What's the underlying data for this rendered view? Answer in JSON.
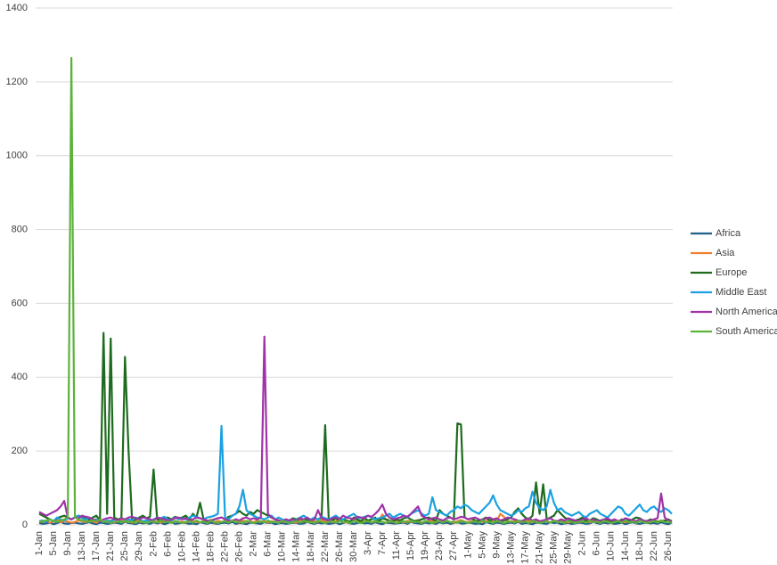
{
  "chart_data": {
    "type": "line",
    "categories": [
      "1-Jan",
      null,
      null,
      null,
      "5-Jan",
      null,
      null,
      null,
      "9-Jan",
      null,
      null,
      null,
      "13-Jan",
      null,
      null,
      null,
      "17-Jan",
      null,
      null,
      null,
      "21-Jan",
      null,
      null,
      null,
      "25-Jan",
      null,
      null,
      null,
      "29-Jan",
      null,
      null,
      null,
      "2-Feb",
      null,
      null,
      null,
      "6-Feb",
      null,
      null,
      null,
      "10-Feb",
      null,
      null,
      null,
      "14-Feb",
      null,
      null,
      null,
      "18-Feb",
      null,
      null,
      null,
      "22-Feb",
      null,
      null,
      null,
      "26-Feb",
      null,
      null,
      null,
      "2-Mar",
      null,
      null,
      null,
      "6-Mar",
      null,
      null,
      null,
      "10-Mar",
      null,
      null,
      null,
      "14-Mar",
      null,
      null,
      null,
      "18-Mar",
      null,
      null,
      null,
      "22-Mar",
      null,
      null,
      null,
      "26-Mar",
      null,
      null,
      null,
      "30-Mar",
      null,
      null,
      null,
      "3-Apr",
      null,
      null,
      null,
      "7-Apr",
      null,
      null,
      null,
      "11-Apr",
      null,
      null,
      null,
      "15-Apr",
      null,
      null,
      null,
      "19-Apr",
      null,
      null,
      null,
      "23-Apr",
      null,
      null,
      null,
      "27-Apr",
      null,
      null,
      null,
      "1-May",
      null,
      null,
      null,
      "5-May",
      null,
      null,
      null,
      "9-May",
      null,
      null,
      null,
      "13-May",
      null,
      null,
      null,
      "17-May",
      null,
      null,
      null,
      "21-May",
      null,
      null,
      null,
      "25-May",
      null,
      null,
      null,
      "29-May",
      null,
      null,
      null,
      "2-Jun",
      null,
      null,
      null,
      "6-Jun",
      null,
      null,
      null,
      "10-Jun",
      null,
      null,
      null,
      "14-Jun",
      null,
      null,
      null,
      "18-Jun",
      null,
      null,
      null,
      "22-Jun",
      null,
      null,
      null,
      "26-Jun",
      null
    ],
    "series": [
      {
        "name": "Africa",
        "color": "#1f5f8b",
        "values": [
          5,
          3,
          4,
          6,
          2,
          5,
          8,
          4,
          3,
          5,
          6,
          4,
          3,
          5,
          7,
          4,
          2,
          6,
          5,
          3,
          4,
          6,
          5,
          3,
          8,
          5,
          4,
          2,
          6,
          4,
          5,
          3,
          7,
          4,
          6,
          2,
          5,
          8,
          3,
          4,
          6,
          5,
          3,
          4,
          2,
          7,
          5,
          3,
          6,
          4,
          3,
          5,
          6,
          4,
          8,
          3,
          5,
          4,
          2,
          6,
          5,
          4,
          3,
          7,
          5,
          6,
          2,
          4,
          5,
          3,
          4,
          6,
          5,
          3,
          4,
          8,
          5,
          3,
          6,
          4,
          5,
          3,
          4,
          6,
          2,
          5,
          7,
          4,
          3,
          5,
          6,
          4,
          5,
          3,
          7,
          4,
          2,
          6,
          5,
          4,
          4,
          5,
          6,
          3,
          8,
          5,
          4,
          3,
          6,
          4,
          5,
          3,
          7,
          4,
          6,
          3,
          5,
          8,
          4,
          4,
          6,
          5,
          3,
          4,
          2,
          7,
          5,
          3,
          6,
          5,
          3,
          5,
          6,
          4,
          8,
          3,
          5,
          4,
          2,
          6,
          5,
          4,
          3,
          7,
          5,
          6,
          2,
          4,
          5,
          3,
          4,
          6,
          5,
          3,
          4,
          8,
          5,
          3,
          6,
          4,
          5,
          3,
          4,
          6,
          2,
          5,
          7,
          4,
          3,
          5,
          6,
          4,
          5,
          3,
          7,
          4,
          2,
          6
        ]
      },
      {
        "name": "Asia",
        "color": "#f07f2f",
        "values": [
          10,
          8,
          12,
          6,
          9,
          15,
          7,
          11,
          9,
          6,
          8,
          12,
          10,
          7,
          14,
          9,
          6,
          11,
          8,
          10,
          12,
          7,
          9,
          13,
          8,
          10,
          6,
          12,
          9,
          7,
          10,
          14,
          8,
          9,
          6,
          11,
          13,
          7,
          10,
          8,
          9,
          6,
          12,
          10,
          8,
          7,
          11,
          9,
          14,
          6,
          11,
          8,
          10,
          7,
          13,
          9,
          6,
          12,
          8,
          10,
          7,
          12,
          9,
          11,
          6,
          10,
          8,
          13,
          9,
          7,
          10,
          8,
          6,
          12,
          9,
          11,
          7,
          10,
          8,
          14,
          9,
          11,
          7,
          10,
          13,
          8,
          6,
          9,
          12,
          10,
          8,
          10,
          12,
          7,
          9,
          11,
          28,
          14,
          8,
          10,
          12,
          9,
          7,
          11,
          8,
          10,
          13,
          6,
          9,
          11,
          10,
          7,
          12,
          9,
          11,
          8,
          6,
          10,
          13,
          9,
          7,
          11,
          9,
          12,
          8,
          10,
          14,
          7,
          9,
          30,
          22,
          10,
          8,
          11,
          9,
          7,
          12,
          10,
          8,
          11,
          9,
          12,
          10,
          7,
          11,
          8,
          13,
          9,
          6,
          10,
          11,
          8,
          9,
          12,
          7,
          10,
          8,
          11,
          9,
          13,
          8,
          10,
          12,
          9,
          7,
          11,
          10,
          8,
          12,
          9,
          10,
          7,
          11,
          9,
          12,
          8,
          10,
          9
        ]
      },
      {
        "name": "Europe",
        "color": "#1e6b1e",
        "values": [
          30,
          25,
          20,
          15,
          10,
          18,
          22,
          25,
          20,
          15,
          20,
          25,
          22,
          18,
          15,
          20,
          25,
          12,
          520,
          30,
          505,
          20,
          15,
          18,
          455,
          200,
          10,
          15,
          20,
          25,
          18,
          22,
          150,
          15,
          12,
          18,
          20,
          15,
          22,
          18,
          20,
          25,
          15,
          30,
          20,
          60,
          15,
          10,
          12,
          15,
          18,
          20,
          15,
          22,
          25,
          30,
          38,
          30,
          25,
          35,
          30,
          40,
          35,
          30,
          25,
          20,
          15,
          12,
          10,
          15,
          12,
          18,
          15,
          20,
          10,
          15,
          12,
          18,
          15,
          20,
          270,
          15,
          12,
          18,
          10,
          15,
          12,
          8,
          20,
          15,
          10,
          18,
          12,
          15,
          20,
          10,
          18,
          15,
          12,
          10,
          15,
          12,
          18,
          20,
          15,
          10,
          12,
          15,
          18,
          20,
          15,
          12,
          40,
          30,
          25,
          20,
          15,
          275,
          272,
          20,
          15,
          18,
          12,
          10,
          15,
          20,
          12,
          15,
          10,
          8,
          12,
          15,
          20,
          35,
          45,
          30,
          20,
          15,
          25,
          115,
          30,
          110,
          15,
          20,
          25,
          40,
          30,
          20,
          15,
          10,
          12,
          15,
          20,
          10,
          12,
          18,
          15,
          10,
          12,
          15,
          10,
          12,
          8,
          15,
          12,
          10,
          15,
          20,
          18,
          12,
          10,
          15,
          12,
          8,
          10,
          12,
          15,
          10
        ]
      },
      {
        "name": "Middle East",
        "color": "#1ba1e2",
        "values": [
          10,
          12,
          8,
          15,
          10,
          20,
          15,
          12,
          18,
          15,
          20,
          25,
          18,
          15,
          20,
          12,
          15,
          10,
          8,
          12,
          10,
          15,
          12,
          8,
          10,
          15,
          12,
          20,
          15,
          10,
          12,
          10,
          15,
          20,
          18,
          22,
          15,
          12,
          20,
          15,
          18,
          15,
          20,
          25,
          22,
          18,
          15,
          20,
          22,
          25,
          30,
          268,
          20,
          15,
          25,
          30,
          50,
          95,
          40,
          30,
          25,
          20,
          18,
          15,
          20,
          25,
          15,
          20,
          15,
          12,
          10,
          15,
          12,
          20,
          25,
          18,
          15,
          20,
          15,
          22,
          18,
          15,
          20,
          25,
          18,
          15,
          20,
          25,
          30,
          20,
          18,
          22,
          25,
          20,
          15,
          18,
          20,
          25,
          30,
          20,
          25,
          30,
          25,
          20,
          30,
          35,
          40,
          30,
          25,
          30,
          75,
          40,
          35,
          30,
          25,
          35,
          40,
          50,
          45,
          55,
          50,
          40,
          35,
          30,
          40,
          50,
          60,
          80,
          55,
          40,
          35,
          30,
          25,
          30,
          40,
          35,
          45,
          50,
          90,
          60,
          45,
          40,
          50,
          95,
          60,
          40,
          45,
          35,
          30,
          25,
          30,
          35,
          25,
          20,
          30,
          35,
          40,
          30,
          25,
          20,
          30,
          40,
          50,
          45,
          30,
          25,
          35,
          45,
          55,
          40,
          35,
          45,
          50,
          40,
          35,
          45,
          40,
          30
        ]
      },
      {
        "name": "North America",
        "color": "#a033a8",
        "values": [
          35,
          30,
          25,
          30,
          35,
          40,
          50,
          65,
          20,
          15,
          20,
          18,
          25,
          22,
          20,
          15,
          12,
          10,
          15,
          18,
          20,
          15,
          12,
          18,
          15,
          20,
          22,
          18,
          15,
          20,
          18,
          15,
          12,
          20,
          18,
          15,
          12,
          15,
          18,
          20,
          15,
          18,
          12,
          15,
          20,
          18,
          15,
          12,
          10,
          15,
          18,
          20,
          15,
          12,
          10,
          15,
          12,
          18,
          20,
          15,
          18,
          15,
          20,
          510,
          30,
          20,
          15,
          12,
          10,
          15,
          12,
          15,
          10,
          18,
          15,
          20,
          12,
          15,
          40,
          18,
          15,
          12,
          18,
          20,
          15,
          25,
          20,
          18,
          15,
          22,
          20,
          18,
          25,
          22,
          30,
          40,
          55,
          30,
          20,
          15,
          18,
          20,
          25,
          22,
          30,
          40,
          50,
          25,
          20,
          15,
          18,
          20,
          15,
          12,
          18,
          20,
          15,
          18,
          22,
          20,
          15,
          18,
          20,
          15,
          12,
          18,
          20,
          15,
          18,
          12,
          15,
          20,
          18,
          15,
          12,
          10,
          15,
          18,
          12,
          15,
          10,
          12,
          15,
          18,
          12,
          10,
          15,
          12,
          18,
          15,
          12,
          10,
          15,
          18,
          12,
          15,
          10,
          12,
          15,
          18,
          12,
          15,
          10,
          12,
          18,
          15,
          12,
          10,
          15,
          12,
          10,
          12,
          15,
          18,
          85,
          20,
          12,
          10
        ]
      },
      {
        "name": "South America",
        "color": "#5bb33b",
        "values": [
          8,
          10,
          12,
          15,
          10,
          8,
          12,
          15,
          20,
          1265,
          20,
          15,
          12,
          10,
          8,
          12,
          10,
          15,
          8,
          10,
          5,
          8,
          10,
          6,
          12,
          7,
          9,
          5,
          11,
          8,
          5,
          8,
          10,
          6,
          12,
          7,
          9,
          5,
          11,
          8,
          5,
          8,
          10,
          6,
          12,
          7,
          9,
          5,
          11,
          8,
          5,
          8,
          10,
          6,
          12,
          7,
          9,
          5,
          11,
          8,
          5,
          8,
          10,
          6,
          12,
          7,
          9,
          5,
          11,
          8,
          5,
          8,
          10,
          6,
          12,
          7,
          9,
          5,
          11,
          8,
          5,
          8,
          10,
          6,
          12,
          7,
          9,
          5,
          11,
          8,
          5,
          8,
          10,
          6,
          12,
          7,
          9,
          5,
          11,
          8,
          5,
          8,
          10,
          6,
          12,
          7,
          9,
          5,
          11,
          8,
          5,
          8,
          10,
          6,
          12,
          7,
          9,
          5,
          11,
          8,
          5,
          8,
          10,
          6,
          12,
          7,
          9,
          5,
          11,
          8,
          5,
          8,
          10,
          6,
          12,
          7,
          9,
          5,
          11,
          8,
          5,
          8,
          10,
          6,
          12,
          7,
          9,
          5,
          11,
          8,
          5,
          8,
          10,
          6,
          12,
          7,
          9,
          5,
          11,
          8,
          5,
          8,
          10,
          6,
          12,
          7,
          9,
          5,
          11,
          8,
          5,
          8,
          10,
          6,
          12,
          7,
          9,
          5
        ]
      }
    ],
    "ylim": [
      0,
      1400
    ],
    "yticks": [
      0,
      200,
      400,
      600,
      800,
      1000,
      1200,
      1400
    ],
    "grid": true,
    "legend": "right"
  }
}
